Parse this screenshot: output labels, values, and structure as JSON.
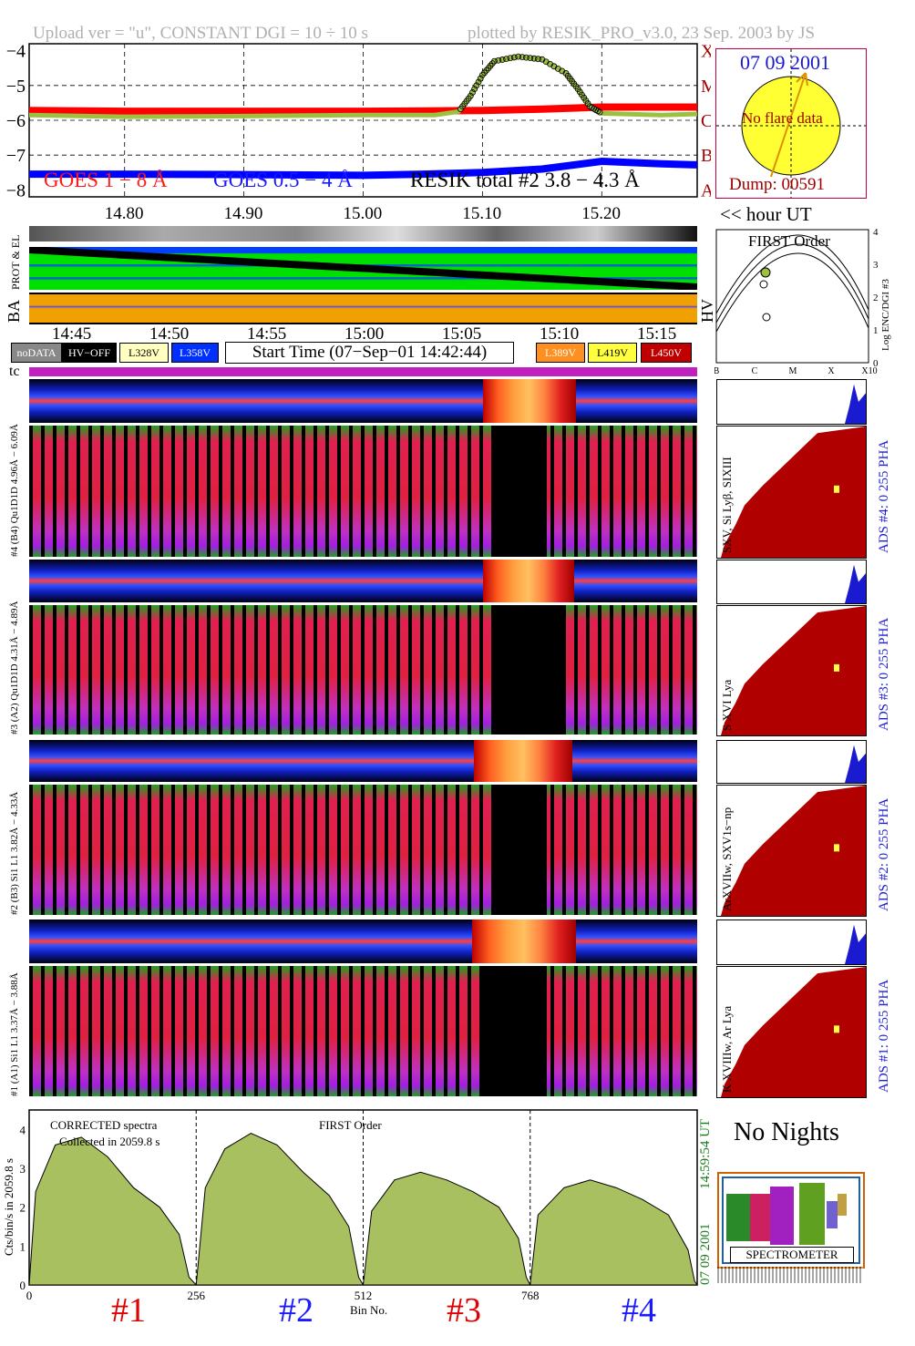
{
  "header": {
    "upload": "Upload ver = \"u\", CONSTANT  DGI =  10 ÷  10 s",
    "plotted": "plotted by RESIK_PRO_v3.0, 23 Sep. 2003 by JS"
  },
  "goes": {
    "legend_goes1": "GOES 1 − 8 Å",
    "legend_goes2": "GOES 0.5 − 4 Å",
    "legend_resik": "RESIK total #2  3.8 − 4.3 Å",
    "classes": [
      "A",
      "B",
      "C",
      "M",
      "X"
    ],
    "x_ticks": [
      "14.80",
      "14.90",
      "15.00",
      "15.10",
      "15.20"
    ],
    "x_unit": "<< hour UT"
  },
  "sun": {
    "date": "07 09 2001",
    "message": "No flare data",
    "dump": "Dump: 00591"
  },
  "strips": {
    "prot_label": "PROT & EL",
    "ba_label": "BA",
    "hv_label": "HV"
  },
  "time_axis": {
    "ticks": [
      "14:45",
      "14:50",
      "14:55",
      "15:00",
      "15:05",
      "15:10",
      "15:15"
    ],
    "start_time": "Start Time (07−Sep−01 14:42:44)",
    "tc_label": "tc"
  },
  "legend": {
    "nodata": "noDATA",
    "hvoff": "HV−OFF",
    "v328": "L328V",
    "v358": "L358V",
    "v389": "L389V",
    "v419": "L419V",
    "v450": "L450V"
  },
  "first_order": {
    "title": "FIRST Order",
    "ylabel": "Log ENC/DGI #3",
    "y_ticks": [
      "0",
      "1",
      "2",
      "3",
      "4"
    ],
    "x_ticks": [
      "B",
      "C",
      "M",
      "X",
      "X10"
    ]
  },
  "channels": [
    {
      "pha_label": "#4 (B4) Qu1D1D 4.96Å − 6.09Å",
      "side": "SXV, Si Lyβ, SIXIII",
      "ads": "ADS #4:  0 255  PHA"
    },
    {
      "pha_label": "#3 (A2) Qu1D1D 4.31Å − 4.89Å",
      "side": "S XVI Lya",
      "ads": "ADS #3:  0 255  PHA"
    },
    {
      "pha_label": "#2 (B3) Si1 L1 3.82Å − 4.33Å",
      "side": "ArXVIIw, SXV1s−np",
      "ads": "ADS #2:  0 255  PHA"
    },
    {
      "pha_label": "#1 (A1) Si1 L1 3.37Å − 3.88Å",
      "side": "K XVIIIw, Ar Lya",
      "ads": "ADS #1:  0 255  PHA"
    }
  ],
  "spectra": {
    "title": "CORRECTED spectra",
    "collected": "Collected in  2059.8 s",
    "order": "FIRST Order",
    "ylabel": "Cts/bin/s in  2059.8 s",
    "y_ticks": [
      "0",
      "1",
      "2",
      "3",
      "4"
    ],
    "x_ticks": [
      "0",
      "256",
      "512",
      "768"
    ],
    "xlabel": "Bin No.",
    "time": "14:59:54 UT",
    "date": "07 09 2001",
    "channels": [
      "#1",
      "#2",
      "#3",
      "#4"
    ]
  },
  "right_panel": {
    "nights": "No Nights",
    "logo_bottom": "SPECTROMETER"
  },
  "chart_data": [
    {
      "type": "line",
      "title": "",
      "ylabel": "",
      "ylim": [
        -8.2,
        -3.8
      ],
      "xlim": [
        14.72,
        15.28
      ],
      "series": [
        {
          "name": "GOES 1 − 8 Å",
          "color": "#ff0000",
          "x": [
            14.72,
            14.8,
            14.9,
            15.0,
            15.05,
            15.1,
            15.15,
            15.2,
            15.28
          ],
          "y": [
            -5.72,
            -5.74,
            -5.74,
            -5.74,
            -5.73,
            -5.72,
            -5.68,
            -5.62,
            -5.62
          ]
        },
        {
          "name": "GOES 0.5 − 4 Å",
          "color": "#0000ff",
          "x": [
            14.72,
            14.8,
            14.9,
            15.0,
            15.05,
            15.1,
            15.15,
            15.2,
            15.25,
            15.28
          ],
          "y": [
            -7.55,
            -7.55,
            -7.56,
            -7.58,
            -7.55,
            -7.5,
            -7.4,
            -7.18,
            -7.25,
            -7.28
          ]
        },
        {
          "name": "RESIK total #2  3.8 − 4.3 Å",
          "color": "#000000",
          "x": [
            14.72,
            14.8,
            14.9,
            15.0,
            15.06,
            15.08,
            15.09,
            15.1,
            15.11,
            15.13,
            15.15,
            15.17,
            15.18,
            15.19,
            15.2,
            15.25,
            15.28
          ],
          "y": [
            -5.85,
            -5.9,
            -5.88,
            -5.85,
            -5.85,
            -5.75,
            -5.3,
            -4.7,
            -4.3,
            -4.17,
            -4.25,
            -4.65,
            -5.1,
            -5.6,
            -5.8,
            -5.85,
            -5.82
          ]
        }
      ]
    },
    {
      "type": "area",
      "title": "CORRECTED spectra",
      "xlabel": "Bin No.",
      "ylabel": "Cts/bin/s in  2059.8 s",
      "xlim": [
        0,
        1024
      ],
      "ylim": [
        0,
        4.5
      ],
      "series": [
        {
          "name": "#1",
          "x": [
            0,
            10,
            40,
            80,
            120,
            160,
            200,
            230,
            245,
            256
          ],
          "y": [
            0,
            2.4,
            3.6,
            3.8,
            3.3,
            2.5,
            2.0,
            1.3,
            0.2,
            0
          ]
        },
        {
          "name": "#2",
          "x": [
            256,
            270,
            300,
            340,
            380,
            420,
            460,
            490,
            505,
            512
          ],
          "y": [
            0,
            2.5,
            3.5,
            3.9,
            3.6,
            2.9,
            2.3,
            1.5,
            0.2,
            0
          ]
        },
        {
          "name": "#3",
          "x": [
            512,
            525,
            560,
            600,
            640,
            680,
            720,
            750,
            762,
            768
          ],
          "y": [
            0,
            1.9,
            2.7,
            2.9,
            2.7,
            2.4,
            2.0,
            1.2,
            0.2,
            0
          ]
        },
        {
          "name": "#4",
          "x": [
            768,
            780,
            820,
            860,
            900,
            940,
            980,
            1010,
            1020,
            1024
          ],
          "y": [
            0,
            1.8,
            2.5,
            2.7,
            2.5,
            2.2,
            1.8,
            0.9,
            0.1,
            0
          ]
        }
      ]
    }
  ]
}
